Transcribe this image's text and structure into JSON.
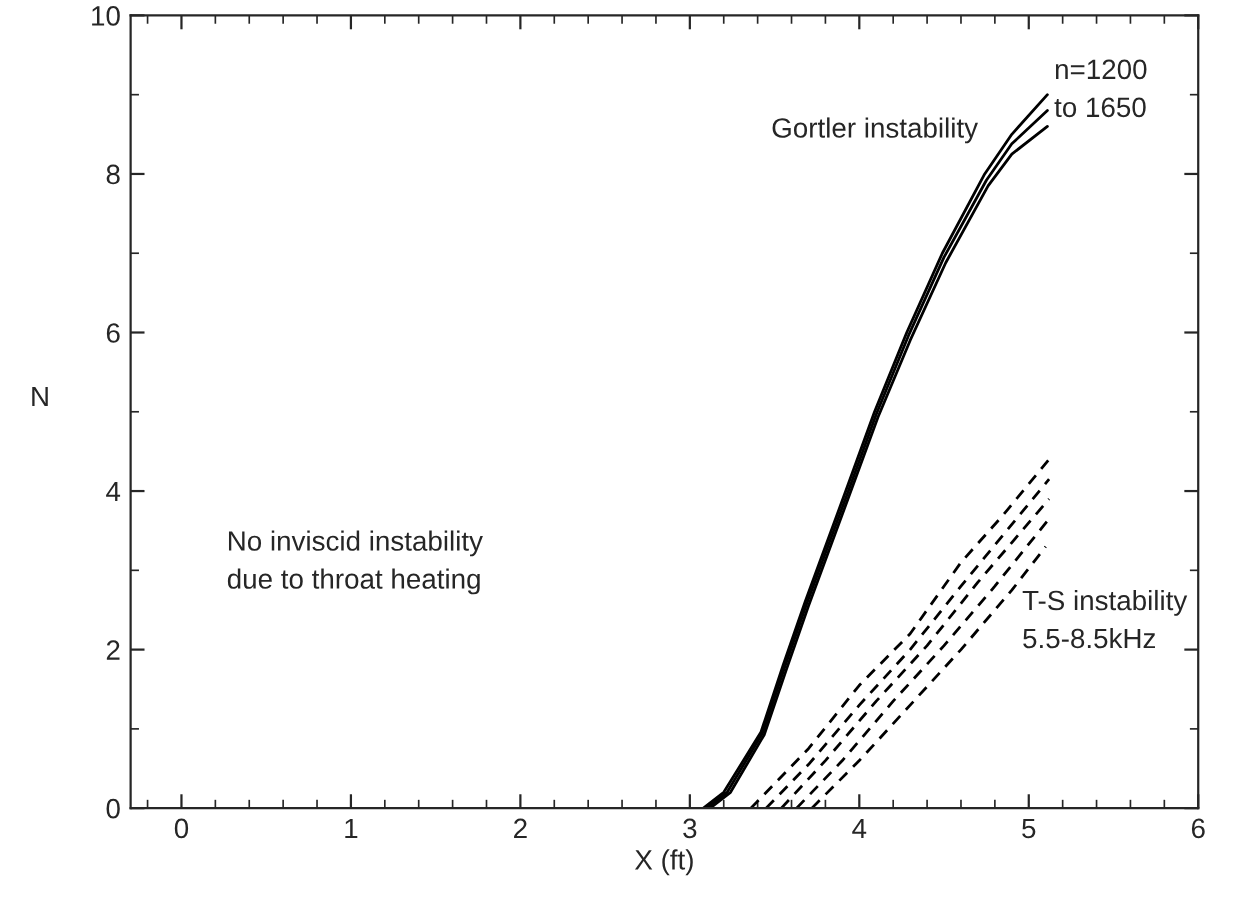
{
  "chart_data": {
    "type": "line",
    "xlabel": "X (ft)",
    "ylabel": "N",
    "xlim": [
      -0.3,
      6
    ],
    "ylim": [
      0,
      10
    ],
    "xticks": [
      0,
      1,
      2,
      3,
      4,
      5,
      6
    ],
    "yticks": [
      0,
      2,
      4,
      6,
      8,
      10
    ],
    "grid": false,
    "legend": false,
    "series": [
      {
        "color": "#000000",
        "line_style": "solid",
        "x": [
          3.08,
          3.2,
          3.42,
          3.55,
          3.68,
          3.92,
          4.09,
          4.28,
          4.49,
          4.74,
          4.9,
          5.11
        ],
        "values": [
          0,
          0.2,
          0.96,
          1.8,
          2.6,
          4.0,
          5.0,
          6.0,
          7.0,
          8.0,
          8.5,
          9.0
        ]
      },
      {
        "color": "#000000",
        "line_style": "solid",
        "x": [
          3.1,
          3.22,
          3.43,
          3.56,
          3.69,
          3.93,
          4.1,
          4.29,
          4.5,
          4.75,
          4.9,
          5.11
        ],
        "values": [
          0,
          0.2,
          0.95,
          1.78,
          2.58,
          3.97,
          4.97,
          5.96,
          6.95,
          7.92,
          8.38,
          8.8
        ]
      },
      {
        "color": "#000000",
        "line_style": "solid",
        "x": [
          3.12,
          3.24,
          3.44,
          3.57,
          3.7,
          3.94,
          4.11,
          4.3,
          4.51,
          4.76,
          4.9,
          5.11
        ],
        "values": [
          0,
          0.2,
          0.93,
          1.75,
          2.55,
          3.94,
          4.93,
          5.9,
          6.88,
          7.85,
          8.25,
          8.6
        ]
      },
      {
        "color": "#000000",
        "line_style": "dashed",
        "x": [
          3.36,
          3.7,
          4.0,
          4.3,
          4.6,
          4.85,
          5.12
        ],
        "values": [
          0,
          0.75,
          1.55,
          2.2,
          3.1,
          3.7,
          4.4
        ]
      },
      {
        "color": "#000000",
        "line_style": "dashed",
        "x": [
          3.45,
          3.7,
          4.0,
          4.3,
          4.6,
          4.85,
          5.12
        ],
        "values": [
          0,
          0.55,
          1.3,
          2.0,
          2.8,
          3.45,
          4.15
        ]
      },
      {
        "color": "#000000",
        "line_style": "dashed",
        "x": [
          3.54,
          3.8,
          4.1,
          4.4,
          4.7,
          4.9,
          5.12
        ],
        "values": [
          0,
          0.6,
          1.35,
          2.05,
          2.85,
          3.35,
          3.9
        ]
      },
      {
        "color": "#000000",
        "line_style": "dashed",
        "x": [
          3.63,
          3.9,
          4.2,
          4.5,
          4.8,
          5.12
        ],
        "values": [
          0,
          0.6,
          1.35,
          2.05,
          2.8,
          3.65
        ]
      },
      {
        "color": "#000000",
        "line_style": "dashed",
        "x": [
          3.72,
          4.0,
          4.3,
          4.6,
          4.9,
          5.1
        ],
        "values": [
          0,
          0.6,
          1.3,
          2.0,
          2.75,
          3.3
        ]
      }
    ],
    "annotations": [
      "n=1200\nto 1650",
      "Gortler instability",
      "No inviscid instability\ndue to throat heating",
      "T-S instability\n5.5-8.5kHz"
    ]
  }
}
